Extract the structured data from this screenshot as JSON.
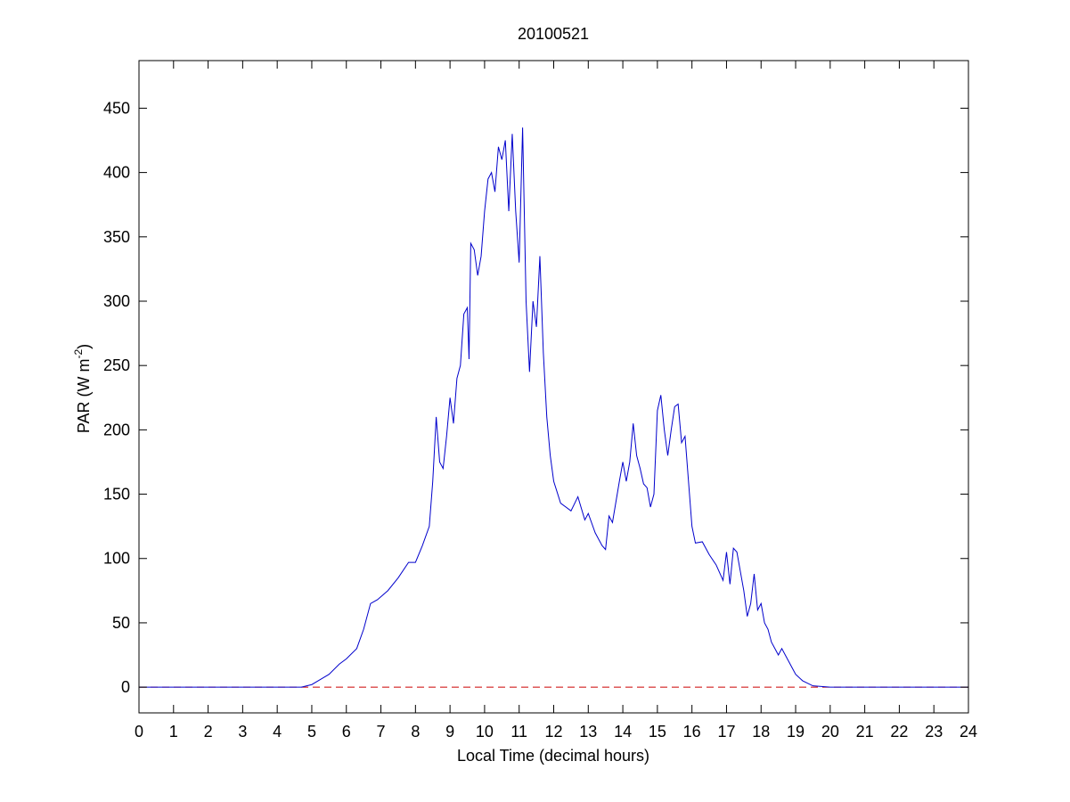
{
  "chart_data": {
    "type": "line",
    "title": "20100521",
    "xlabel": "Local Time (decimal hours)",
    "ylabel": {
      "text": "PAR (W m",
      "sup": "-2",
      "tail": ")"
    },
    "xlim": [
      0,
      24
    ],
    "ylim": [
      -20,
      487
    ],
    "xticks": [
      0,
      1,
      2,
      3,
      4,
      5,
      6,
      7,
      8,
      9,
      10,
      11,
      12,
      13,
      14,
      15,
      16,
      17,
      18,
      19,
      20,
      21,
      22,
      23,
      24
    ],
    "yticks": [
      0,
      50,
      100,
      150,
      200,
      250,
      300,
      350,
      400,
      450
    ],
    "reference_line": {
      "y": 0,
      "color": "#cc0000",
      "style": "dashed"
    },
    "series": [
      {
        "color": "#0000cc",
        "x": [
          0,
          4.7,
          5.0,
          5.5,
          5.8,
          6.0,
          6.3,
          6.5,
          6.7,
          6.9,
          7.2,
          7.5,
          7.8,
          8.0,
          8.2,
          8.4,
          8.5,
          8.6,
          8.7,
          8.8,
          8.9,
          9.0,
          9.1,
          9.2,
          9.3,
          9.4,
          9.5,
          9.55,
          9.6,
          9.7,
          9.8,
          9.9,
          10.0,
          10.1,
          10.2,
          10.3,
          10.4,
          10.5,
          10.6,
          10.7,
          10.8,
          10.9,
          11.0,
          11.1,
          11.2,
          11.3,
          11.4,
          11.5,
          11.6,
          11.7,
          11.8,
          11.9,
          12.0,
          12.2,
          12.5,
          12.7,
          12.9,
          13.0,
          13.2,
          13.4,
          13.5,
          13.6,
          13.7,
          13.9,
          14.0,
          14.1,
          14.2,
          14.3,
          14.4,
          14.5,
          14.6,
          14.7,
          14.8,
          14.9,
          15.0,
          15.1,
          15.2,
          15.3,
          15.4,
          15.5,
          15.6,
          15.7,
          15.8,
          15.9,
          16.0,
          16.1,
          16.3,
          16.5,
          16.7,
          16.9,
          17.0,
          17.1,
          17.2,
          17.3,
          17.4,
          17.5,
          17.6,
          17.7,
          17.8,
          17.9,
          18.0,
          18.1,
          18.2,
          18.3,
          18.5,
          18.6,
          18.8,
          19.0,
          19.2,
          19.5,
          20.0,
          24
        ],
        "values": [
          0,
          0,
          2,
          10,
          18,
          22,
          30,
          45,
          65,
          68,
          75,
          85,
          97,
          97,
          110,
          125,
          160,
          210,
          175,
          170,
          195,
          225,
          205,
          240,
          250,
          290,
          295,
          255,
          345,
          340,
          320,
          335,
          370,
          395,
          400,
          385,
          420,
          410,
          425,
          370,
          430,
          370,
          330,
          435,
          300,
          245,
          300,
          280,
          335,
          260,
          210,
          180,
          160,
          143,
          137,
          148,
          130,
          135,
          120,
          110,
          107,
          133,
          128,
          160,
          175,
          160,
          175,
          205,
          180,
          170,
          158,
          155,
          140,
          150,
          215,
          227,
          200,
          180,
          200,
          218,
          220,
          190,
          195,
          160,
          125,
          112,
          113,
          103,
          95,
          83,
          105,
          80,
          108,
          105,
          90,
          75,
          55,
          65,
          88,
          60,
          65,
          50,
          45,
          35,
          25,
          30,
          20,
          10,
          5,
          1,
          0,
          0
        ]
      }
    ]
  }
}
